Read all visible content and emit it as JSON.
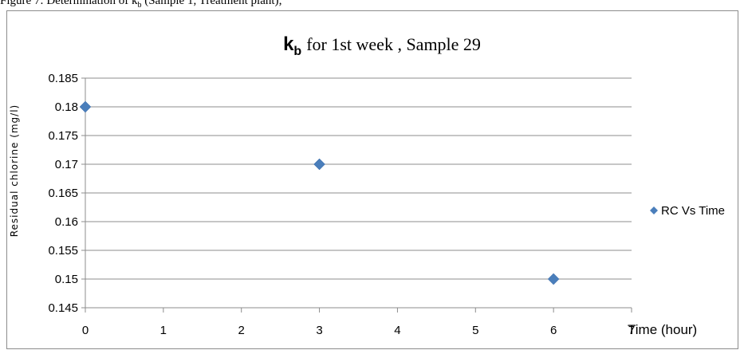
{
  "caption": {
    "text": "Figure 7: Determination of k",
    "sub": "b",
    "rest": " (Sample 1, Treatment plant);"
  },
  "chart_data": {
    "type": "scatter",
    "title": {
      "symbol": "k",
      "subscript": "b",
      "text": "for 1st week , Sample 29"
    },
    "xlabel": "Time (hour)",
    "ylabel": "Residual chlorine (mg/l)",
    "xlim": [
      0,
      7
    ],
    "ylim": [
      0.145,
      0.185
    ],
    "x_ticks": [
      "0",
      "1",
      "2",
      "3",
      "4",
      "5",
      "6",
      "7"
    ],
    "y_ticks": [
      "0.145",
      "0.15",
      "0.155",
      "0.16",
      "0.165",
      "0.17",
      "0.175",
      "0.18",
      "0.185"
    ],
    "grid": "horizontal",
    "legend_position": "right",
    "series": [
      {
        "name": "RC Vs Time",
        "color": "#4a7ebb",
        "marker": "diamond",
        "x": [
          0,
          3,
          6
        ],
        "y": [
          0.18,
          0.17,
          0.15
        ]
      }
    ]
  }
}
